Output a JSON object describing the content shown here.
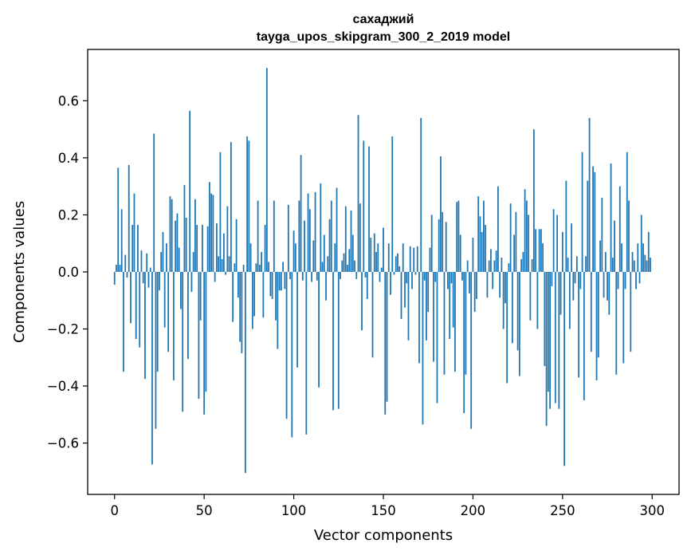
{
  "chart_data": {
    "type": "bar",
    "title": "сахаджий",
    "subtitle": "tayga_upos_skipgram_300_2_2019 model",
    "xlabel": "Vector components",
    "ylabel": "Components values",
    "xlim": [
      -15,
      315
    ],
    "ylim": [
      -0.78,
      0.78
    ],
    "xticks": [
      0,
      50,
      100,
      150,
      200,
      250,
      300
    ],
    "yticks": [
      -0.6,
      -0.4,
      -0.2,
      0.0,
      0.2,
      0.4,
      0.6
    ],
    "xtick_labels": [
      "0",
      "50",
      "100",
      "150",
      "200",
      "250",
      "300"
    ],
    "ytick_labels": [
      "−0.6",
      "−0.4",
      "−0.2",
      "0.0",
      "0.2",
      "0.4",
      "0.6"
    ],
    "bar_color": "#1f77b4",
    "grid": false,
    "values": [
      -0.045,
      0.025,
      0.365,
      0.025,
      0.22,
      -0.35,
      0.06,
      -0.02,
      0.375,
      -0.18,
      0.165,
      0.275,
      -0.235,
      0.165,
      -0.265,
      0.075,
      -0.04,
      -0.375,
      0.065,
      -0.055,
      0.015,
      -0.675,
      0.485,
      -0.55,
      -0.35,
      -0.065,
      0.07,
      0.14,
      -0.195,
      0.1,
      -0.28,
      0.265,
      0.255,
      -0.38,
      0.18,
      0.205,
      0.085,
      -0.13,
      -0.49,
      0.305,
      0.19,
      -0.305,
      0.565,
      -0.07,
      0.07,
      0.255,
      0.165,
      -0.445,
      -0.17,
      0.165,
      -0.5,
      -0.42,
      0.16,
      0.315,
      0.275,
      0.27,
      -0.035,
      0.17,
      0.055,
      0.42,
      0.045,
      0.135,
      -0.01,
      0.23,
      0.055,
      0.455,
      -0.175,
      0.03,
      0.185,
      -0.09,
      -0.245,
      -0.285,
      0.025,
      -0.705,
      0.475,
      0.46,
      0.1,
      -0.2,
      -0.155,
      0.03,
      0.25,
      0.025,
      0.07,
      -0.16,
      0.165,
      0.715,
      0.035,
      -0.085,
      -0.095,
      0.25,
      -0.17,
      -0.27,
      -0.065,
      -0.065,
      0.035,
      -0.06,
      -0.515,
      0.235,
      -0.025,
      -0.58,
      0.145,
      0.1,
      -0.335,
      0.25,
      0.41,
      -0.03,
      0.18,
      -0.57,
      0.275,
      0.22,
      -0.035,
      0.11,
      0.28,
      -0.03,
      -0.405,
      0.31,
      0.035,
      0.13,
      -0.1,
      0.055,
      0.185,
      0.25,
      -0.485,
      0.1,
      0.295,
      -0.48,
      -0.025,
      0.04,
      0.065,
      0.23,
      0.025,
      0.08,
      0.215,
      0.13,
      0.04,
      -0.025,
      0.55,
      0.24,
      -0.205,
      0.46,
      -0.02,
      -0.095,
      0.44,
      0.12,
      -0.3,
      0.135,
      0.07,
      0.1,
      -0.035,
      0.015,
      0.155,
      -0.5,
      -0.455,
      0.1,
      -0.08,
      0.475,
      -0.01,
      0.055,
      0.065,
      0.02,
      -0.165,
      0.1,
      -0.125,
      -0.04,
      -0.24,
      0.09,
      -0.06,
      0.085,
      -0.01,
      0.09,
      -0.32,
      0.54,
      -0.535,
      -0.03,
      -0.24,
      -0.14,
      0.085,
      0.2,
      -0.315,
      -0.035,
      -0.46,
      0.185,
      0.405,
      0.21,
      -0.36,
      0.175,
      -0.06,
      -0.235,
      -0.04,
      -0.195,
      -0.35,
      0.245,
      0.25,
      0.13,
      -0.03,
      -0.495,
      -0.36,
      0.04,
      -0.075,
      -0.55,
      0.12,
      -0.14,
      -0.095,
      0.265,
      0.195,
      0.14,
      0.25,
      0.165,
      -0.09,
      0.04,
      0.08,
      -0.06,
      0.04,
      0.075,
      0.3,
      -0.09,
      0.05,
      -0.2,
      -0.11,
      -0.39,
      0.03,
      0.24,
      -0.25,
      0.13,
      0.21,
      -0.275,
      -0.365,
      0.045,
      0.07,
      0.29,
      0.25,
      0.2,
      -0.17,
      0.045,
      0.5,
      0.15,
      -0.2,
      0.15,
      0.15,
      0.1,
      -0.33,
      -0.54,
      -0.42,
      -0.48,
      -0.05,
      0.22,
      -0.46,
      0.2,
      -0.48,
      -0.15,
      0.14,
      -0.68,
      0.32,
      0.05,
      -0.2,
      0.17,
      -0.1,
      -0.04,
      0.055,
      -0.37,
      -0.06,
      0.42,
      -0.45,
      0.055,
      0.32,
      0.54,
      -0.28,
      0.37,
      0.35,
      -0.38,
      -0.3,
      0.11,
      0.26,
      -0.09,
      0.07,
      -0.1,
      -0.15,
      0.38,
      0.05,
      0.18,
      -0.36,
      -0.06,
      0.3,
      0.1,
      -0.32,
      -0.06,
      0.42,
      0.25,
      -0.28,
      0.07,
      0.04,
      -0.06,
      0.1,
      -0.04,
      0.2,
      0.1,
      0.06,
      0.04,
      0.14,
      0.05
    ]
  }
}
